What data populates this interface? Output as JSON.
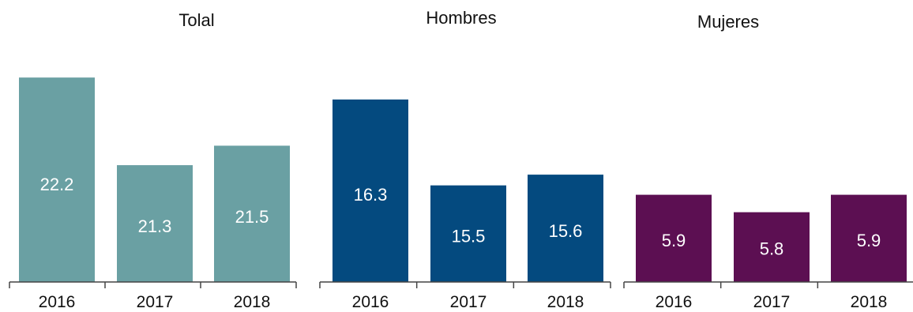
{
  "chart_data": [
    {
      "type": "bar",
      "title": "Tolal",
      "categories": [
        "2016",
        "2017",
        "2018"
      ],
      "values": [
        22.2,
        21.3,
        21.5
      ],
      "color": "#6aa0a3",
      "label_color": "#ffffff",
      "ylim": [
        20.1,
        22.25
      ]
    },
    {
      "type": "bar",
      "title": "Hombres",
      "categories": [
        "2016",
        "2017",
        "2018"
      ],
      "values": [
        16.3,
        15.5,
        15.6
      ],
      "color": "#044a7f",
      "label_color": "#ffffff",
      "ylim": [
        14.6,
        16.55
      ]
    },
    {
      "type": "bar",
      "title": "Mujeres",
      "categories": [
        "2016",
        "2017",
        "2018"
      ],
      "values": [
        5.9,
        5.8,
        5.9
      ],
      "color": "#5c0f52",
      "label_color": "#ffffff",
      "ylim": [
        5.4,
        6.6
      ]
    }
  ]
}
